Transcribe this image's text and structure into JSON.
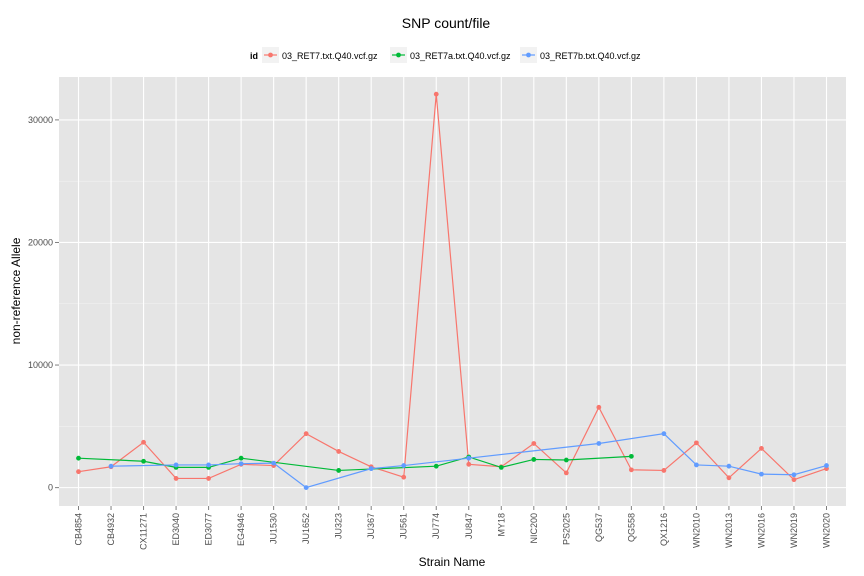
{
  "chart_data": {
    "type": "line",
    "title": "SNP count/file",
    "xlabel": "Strain Name",
    "ylabel": "non-reference Allele",
    "legend_title": "id",
    "legend_position": "top",
    "grid": true,
    "ylim": [
      -1500,
      33500
    ],
    "yticks": [
      0,
      10000,
      20000,
      30000
    ],
    "categories": [
      "CB4854",
      "CB4932",
      "CX11271",
      "ED3040",
      "ED3077",
      "EG4946",
      "JU1530",
      "JU1652",
      "JU323",
      "JU367",
      "JU561",
      "JU774",
      "JU847",
      "MY18",
      "NIC200",
      "PS2025",
      "QG537",
      "QG558",
      "QX1216",
      "WN2010",
      "WN2013",
      "WN2016",
      "WN2019",
      "WN2020"
    ],
    "series": [
      {
        "name": "03_RET7.txt.Q40.vcf.gz",
        "color": "#F8766D",
        "values": [
          1300,
          1700,
          3700,
          750,
          750,
          1900,
          1800,
          4400,
          2950,
          1700,
          850,
          32100,
          1900,
          1700,
          3600,
          1200,
          6550,
          1450,
          1400,
          3650,
          800,
          3200,
          650,
          1550
        ]
      },
      {
        "name": "03_RET7a.txt.Q40.vcf.gz",
        "color": "#00BA38",
        "values": [
          2400,
          null,
          2150,
          1650,
          1650,
          2400,
          null,
          null,
          1400,
          null,
          null,
          1750,
          2500,
          1650,
          2300,
          2250,
          null,
          2550,
          null,
          null,
          null,
          null,
          null,
          null
        ]
      },
      {
        "name": "03_RET7b.txt.Q40.vcf.gz",
        "color": "#619CFF",
        "values": [
          null,
          1750,
          null,
          1850,
          1850,
          1950,
          2000,
          0,
          null,
          1550,
          1800,
          null,
          2400,
          null,
          null,
          null,
          3600,
          null,
          4400,
          1850,
          1750,
          1100,
          1050,
          1800
        ]
      }
    ]
  }
}
